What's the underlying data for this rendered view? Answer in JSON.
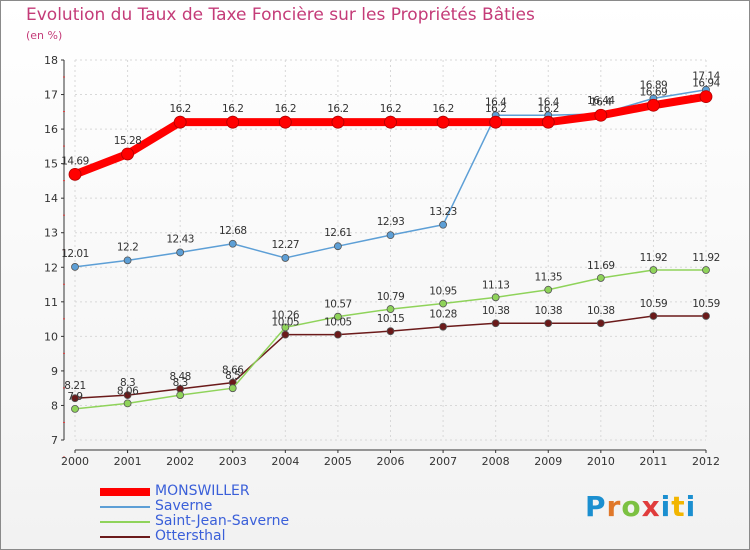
{
  "title": "Evolution du Taux de Taxe Foncière sur les Propriétés Bâties",
  "unit": "(en %)",
  "brand": "Proxiti",
  "chart_data": {
    "type": "line",
    "title": "Evolution du Taux de Taxe Foncière sur les Propriétés Bâties",
    "ylabel": "(en %)",
    "xlabel": "",
    "ylim": [
      7,
      18
    ],
    "yticks": [
      "7",
      "8",
      "9",
      "10",
      "11",
      "12",
      "13",
      "14",
      "15",
      "16",
      "17",
      "18"
    ],
    "categories": [
      "2000",
      "2001",
      "2002",
      "2003",
      "2004",
      "2005",
      "2006",
      "2007",
      "2008",
      "2009",
      "2010",
      "2011",
      "2012"
    ],
    "series": [
      {
        "name": "MONSWILLER",
        "color": "#ff0000",
        "values": [
          14.69,
          15.28,
          16.2,
          16.2,
          16.2,
          16.2,
          16.2,
          16.2,
          16.2,
          16.2,
          16.4,
          16.69,
          16.94
        ],
        "labels": [
          "14.69",
          "15.28",
          "16.2",
          "16.2",
          "16.2",
          "16.2",
          "16.2",
          "16.2",
          "16.2",
          "16.2",
          "16.4",
          "16.69",
          "16.94"
        ]
      },
      {
        "name": "Saverne",
        "color": "#5d9fd6",
        "values": [
          12.01,
          12.2,
          12.43,
          12.68,
          12.27,
          12.61,
          12.93,
          13.23,
          16.4,
          16.4,
          16.44,
          16.89,
          17.14
        ],
        "labels": [
          "12.01",
          "12.2",
          "12.43",
          "12.68",
          "12.27",
          "12.61",
          "12.93",
          "13.23",
          "16.4",
          "16.4",
          "16.44",
          "16.89",
          "17.14"
        ]
      },
      {
        "name": "Saint-Jean-Saverne",
        "color": "#8fd35a",
        "values": [
          7.9,
          8.06,
          8.3,
          8.5,
          10.26,
          10.57,
          10.79,
          10.95,
          11.13,
          11.35,
          11.69,
          11.92,
          11.92
        ],
        "labels": [
          "7.9",
          "8.06",
          "8.3",
          "8.5",
          "10.26",
          "10.57",
          "10.79",
          "10.95",
          "11.13",
          "11.35",
          "11.69",
          "11.92",
          "11.92"
        ]
      },
      {
        "name": "Ottersthal",
        "color": "#6b1a1a",
        "values": [
          8.21,
          8.3,
          8.48,
          8.66,
          10.05,
          10.05,
          10.15,
          10.28,
          10.38,
          10.38,
          10.38,
          10.59,
          10.59
        ],
        "labels": [
          "8.21",
          "8.3",
          "8.48",
          "8.66",
          "10.05",
          "10.05",
          "10.15",
          "10.28",
          "10.38",
          "10.38",
          "10.38",
          "10.59",
          "10.59"
        ]
      }
    ]
  }
}
